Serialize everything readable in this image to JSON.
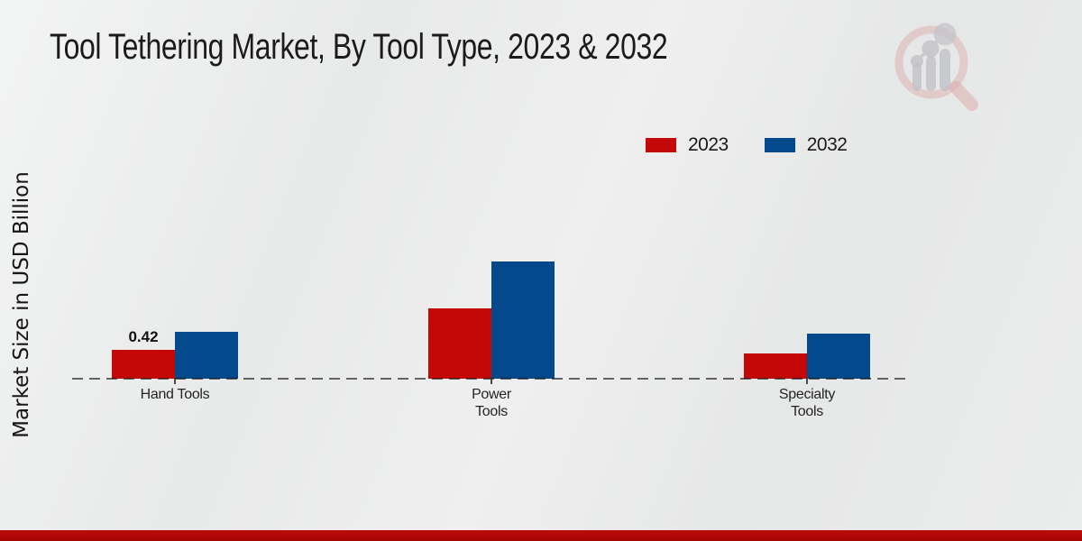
{
  "title": "Tool Tethering Market, By Tool Type, 2023 & 2032",
  "y_axis_label": "Market Size in USD Billion",
  "colors": {
    "series_2023": "#c40808",
    "series_2032": "#03498c",
    "footer_band_top": "#bb0b0b",
    "footer_band_bottom": "#a30404",
    "axis_line": "#4a4a4a",
    "background": "#e9eaea",
    "watermark_pink": "#dbaeae",
    "watermark_gray": "#c0c0c5"
  },
  "legend": {
    "items": [
      {
        "label": "2023",
        "color": "#c40808"
      },
      {
        "label": "2032",
        "color": "#03498c"
      }
    ]
  },
  "watermark": {
    "name": "market-research-future-logo"
  },
  "chart_data": {
    "type": "bar",
    "title": "Tool Tethering Market, By Tool Type, 2023 & 2032",
    "categories": [
      "Hand Tools",
      "Power Tools",
      "Specialty Tools"
    ],
    "category_lines": [
      [
        "Hand Tools"
      ],
      [
        "Power",
        "Tools"
      ],
      [
        "Specialty",
        "Tools"
      ]
    ],
    "series": [
      {
        "name": "2023",
        "color": "#c40808",
        "values": [
          0.42,
          1.03,
          0.37
        ],
        "data_labels": [
          "0.42",
          "",
          ""
        ]
      },
      {
        "name": "2032",
        "color": "#03498c",
        "values": [
          0.68,
          1.71,
          0.66
        ],
        "data_labels": [
          "",
          "",
          ""
        ]
      }
    ],
    "xlabel": "",
    "ylabel": "Market Size in USD Billion",
    "ylim": [
      0,
      2
    ],
    "grid": false,
    "baseline_style": "dashed",
    "legend_position": "top-right",
    "data_label_note": "only Hand Tools 2023 bar is labeled (0.42)"
  }
}
